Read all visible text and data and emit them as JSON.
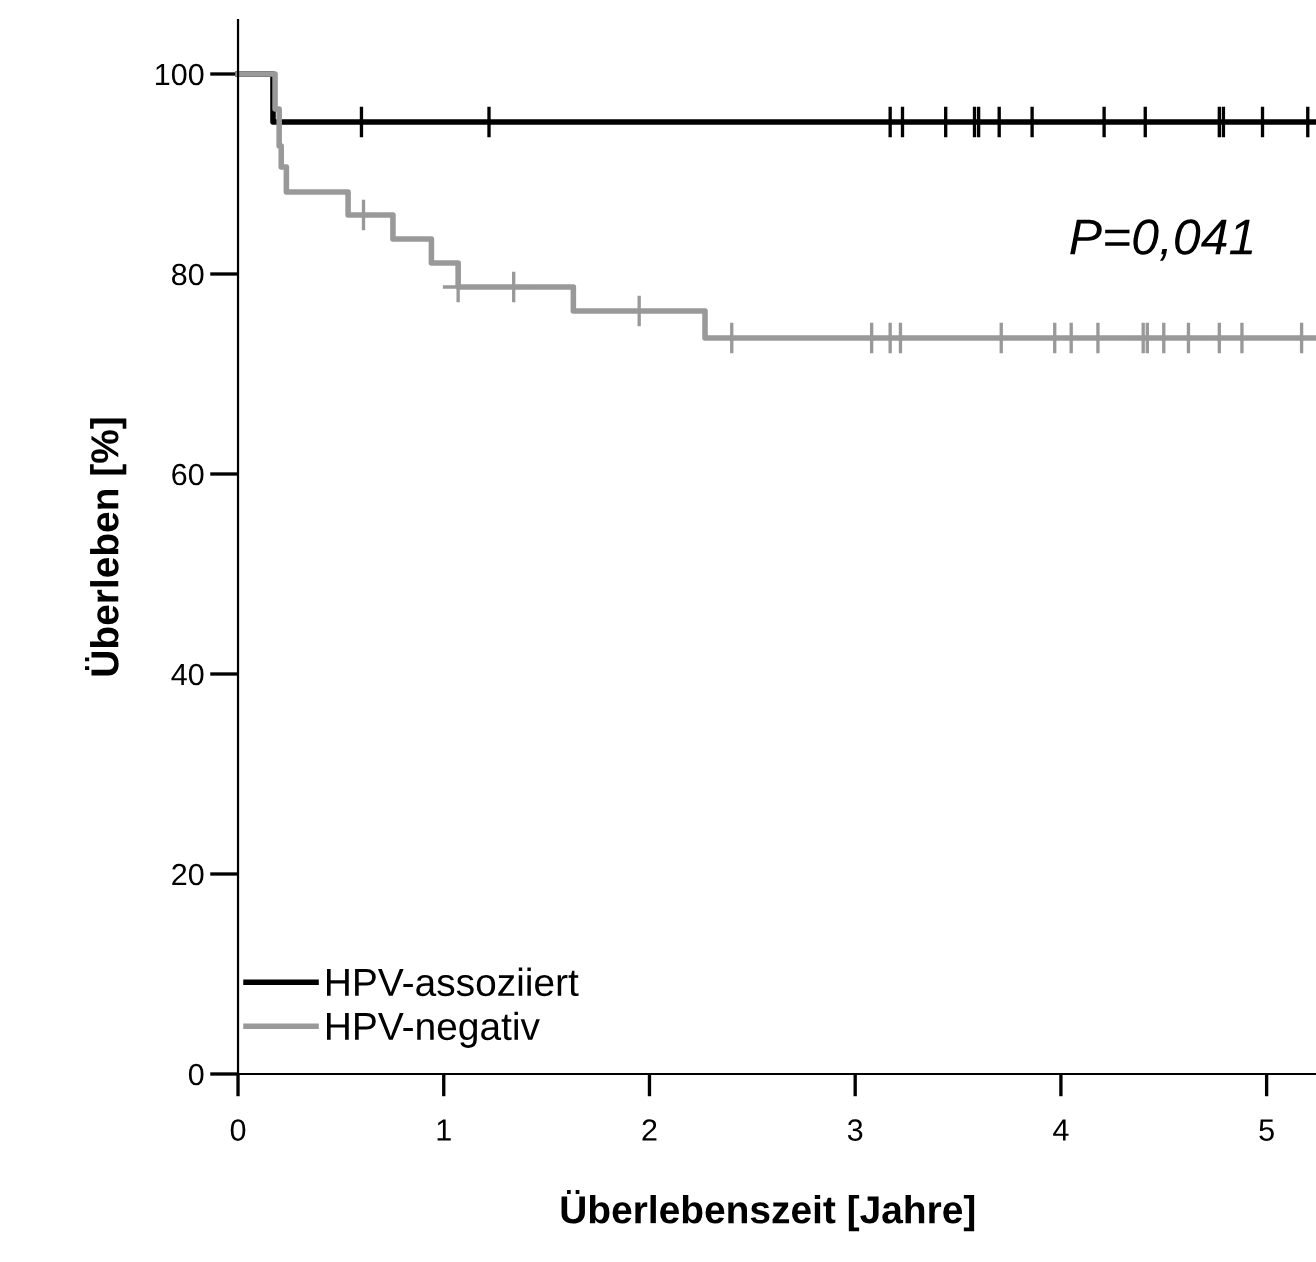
{
  "chart_data": {
    "type": "step",
    "xlabel": "Überlebenszeit [Jahre]",
    "ylabel": "Überleben [%]",
    "xlim": [
      -0.09,
      5.24
    ],
    "ylim": [
      0,
      105.4
    ],
    "xticks": [
      0,
      1,
      2,
      3,
      4,
      5
    ],
    "yticks": [
      0,
      20,
      40,
      60,
      80,
      100
    ],
    "grid": false,
    "legend": "bottom left",
    "annotations": [
      "P=0,041"
    ],
    "series": [
      {
        "name": "HPV-assoziiert",
        "color": "#000000",
        "x": [
          0,
          0.17,
          5.24
        ],
        "values": [
          100,
          95.2,
          95.2
        ]
      },
      {
        "name": "HPV-negativ",
        "color": "#999999",
        "x": [
          0,
          0.18,
          0.2,
          0.21,
          0.235,
          0.535,
          0.753,
          0.94,
          1.07,
          1.63,
          2.27,
          5.24
        ],
        "values": [
          100,
          96.5,
          92.8,
          90.7,
          88.2,
          85.9,
          83.5,
          81.1,
          78.7,
          76.3,
          73.6,
          73.6
        ]
      },
      {
        "type": "scatter",
        "marker": "cross",
        "color": "#000000",
        "x": [
          0.6,
          1.22,
          3.17,
          3.23,
          3.44,
          3.58,
          3.6,
          3.7,
          3.86,
          4.21,
          4.41,
          4.77,
          4.79,
          4.98,
          5.2
        ],
        "values": [
          95.2,
          95.2,
          95.2,
          95.2,
          95.2,
          95.2,
          95.2,
          95.2,
          95.2,
          95.2,
          95.2,
          95.2,
          95.2,
          95.2,
          95.2
        ]
      },
      {
        "type": "scatter",
        "marker": "cross",
        "color": "#999999",
        "x": [
          0.61,
          1.07,
          1.34,
          1.95,
          2.4,
          3.08,
          3.17,
          3.22,
          3.71,
          3.97,
          4.05,
          4.18,
          4.4,
          4.42,
          4.5,
          4.62,
          4.77,
          4.88,
          5.17
        ],
        "values": [
          85.9,
          78.7,
          78.7,
          76.3,
          73.6,
          73.6,
          73.6,
          73.6,
          73.6,
          73.6,
          73.6,
          73.6,
          73.6,
          73.6,
          73.6,
          73.6,
          73.6,
          73.6,
          73.6
        ]
      }
    ]
  }
}
